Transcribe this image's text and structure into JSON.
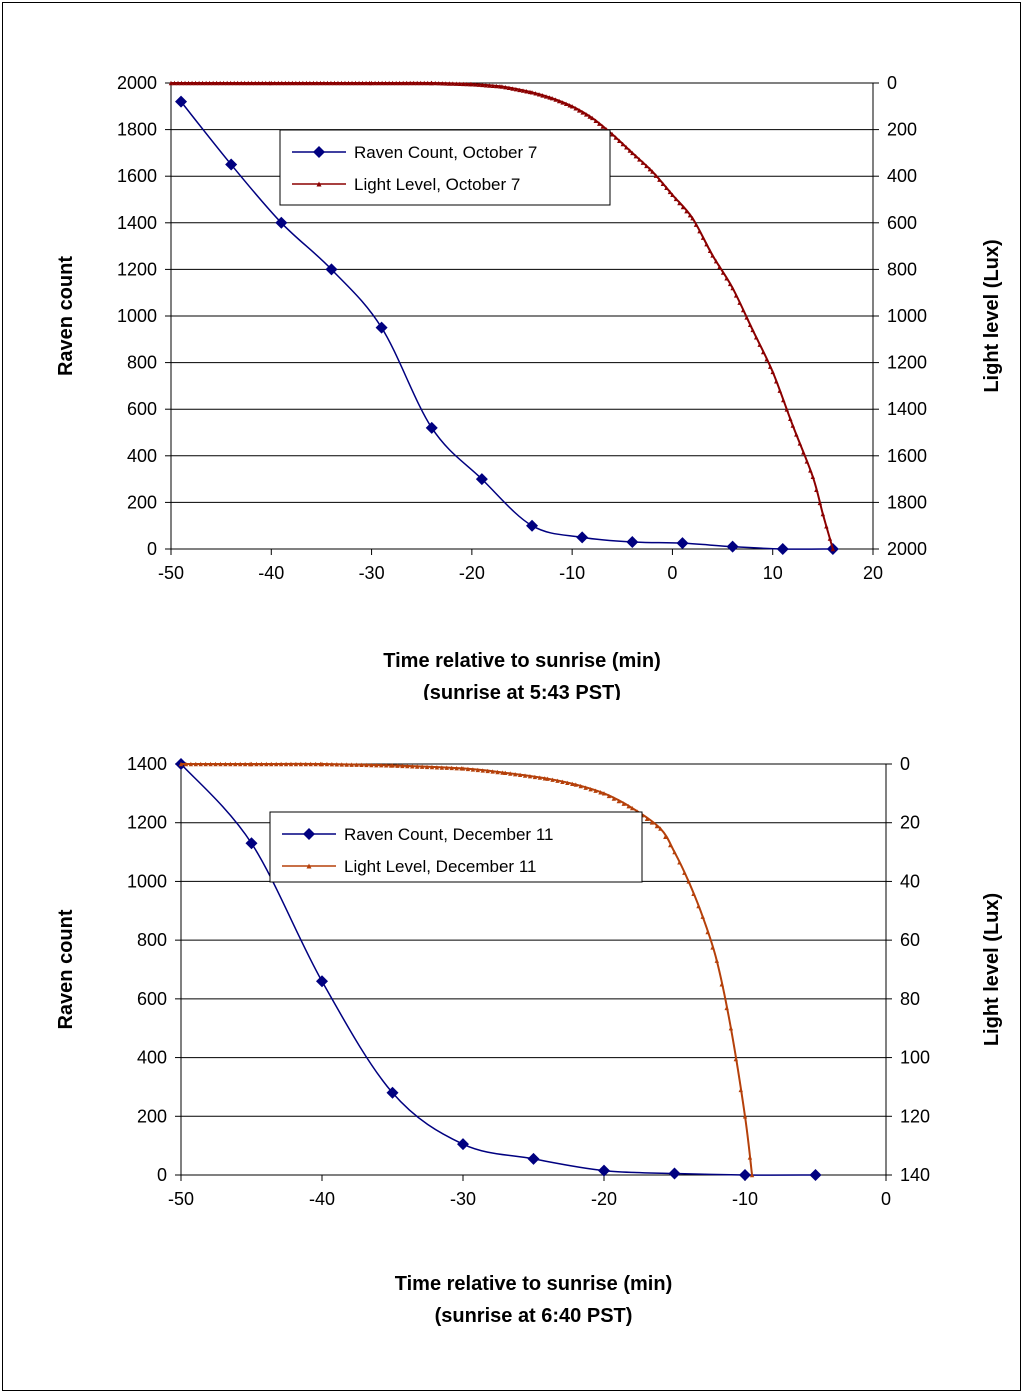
{
  "chart_data": [
    {
      "type": "line",
      "xlabel": "Time relative to sunrise (min)",
      "xlabel2": "(sunrise at 5:43 PST)",
      "ylabel": "Raven count",
      "y2label": "Light level (Lux)",
      "xlim": [
        -50,
        20
      ],
      "ylim": [
        0,
        2000
      ],
      "y2lim": [
        0,
        2000
      ],
      "y2_reversed": true,
      "x_ticks": [
        -50,
        -40,
        -30,
        -20,
        -10,
        0,
        10,
        20
      ],
      "y_ticks": [
        0,
        200,
        400,
        600,
        800,
        1000,
        1200,
        1400,
        1600,
        1800,
        2000
      ],
      "y2_ticks": [
        0,
        200,
        400,
        600,
        800,
        1000,
        1200,
        1400,
        1600,
        1800,
        2000
      ],
      "grid": "horizontal",
      "legend": "top-center",
      "series": [
        {
          "name": "Raven Count, October 7",
          "axis": "left",
          "marker": "diamond",
          "color": "#000080",
          "x": [
            -49,
            -44,
            -39,
            -34,
            -29,
            -24,
            -19,
            -14,
            -9,
            -4,
            1,
            6,
            11,
            16
          ],
          "y": [
            1920,
            1650,
            1400,
            1200,
            950,
            520,
            300,
            100,
            50,
            30,
            25,
            10,
            0,
            0
          ]
        },
        {
          "name": "Light Level, October 7",
          "axis": "right",
          "marker": "triangle",
          "color": "#8b0000",
          "x": [
            -50,
            -40,
            -30,
            -24,
            -20,
            -17,
            -14,
            -12,
            -10,
            -8,
            -6,
            -4,
            -2,
            0,
            2,
            4,
            6,
            8,
            10,
            12,
            14,
            15,
            16
          ],
          "y": [
            0,
            0,
            0,
            0,
            5,
            15,
            40,
            65,
            100,
            150,
            220,
            300,
            380,
            480,
            580,
            740,
            880,
            1060,
            1240,
            1470,
            1690,
            1850,
            2000
          ]
        }
      ]
    },
    {
      "type": "line",
      "xlabel": "Time relative to sunrise (min)",
      "xlabel2": "(sunrise at 6:40 PST)",
      "ylabel": "Raven count",
      "y2label": "Light level (Lux)",
      "xlim": [
        -50,
        0
      ],
      "ylim": [
        0,
        1400
      ],
      "y2lim": [
        0,
        140
      ],
      "y2_reversed": true,
      "x_ticks": [
        -50,
        -40,
        -30,
        -20,
        -10,
        0
      ],
      "y_ticks": [
        0,
        200,
        400,
        600,
        800,
        1000,
        1200,
        1400
      ],
      "y2_ticks": [
        0,
        20,
        40,
        60,
        80,
        100,
        120,
        140
      ],
      "grid": "horizontal",
      "legend": "top-center",
      "series": [
        {
          "name": "Raven Count, December 11",
          "axis": "left",
          "marker": "diamond",
          "color": "#000080",
          "x": [
            -50,
            -45,
            -40,
            -35,
            -30,
            -25,
            -20,
            -15,
            -10,
            -5
          ],
          "y": [
            1400,
            1130,
            660,
            280,
            105,
            55,
            15,
            5,
            0,
            0
          ]
        },
        {
          "name": "Light Level, December 11",
          "axis": "right",
          "marker": "triangle",
          "color": "#b5400a",
          "x": [
            -50,
            -45,
            -40,
            -35,
            -30,
            -27,
            -24,
            -22,
            -20,
            -18,
            -16,
            -15,
            -14,
            -13,
            -12,
            -11,
            -10,
            -9.5
          ],
          "y": [
            0,
            0,
            0,
            0.5,
            1.5,
            3,
            5,
            7,
            10,
            15,
            22,
            30,
            40,
            52,
            67,
            90,
            120,
            140
          ]
        }
      ]
    }
  ]
}
